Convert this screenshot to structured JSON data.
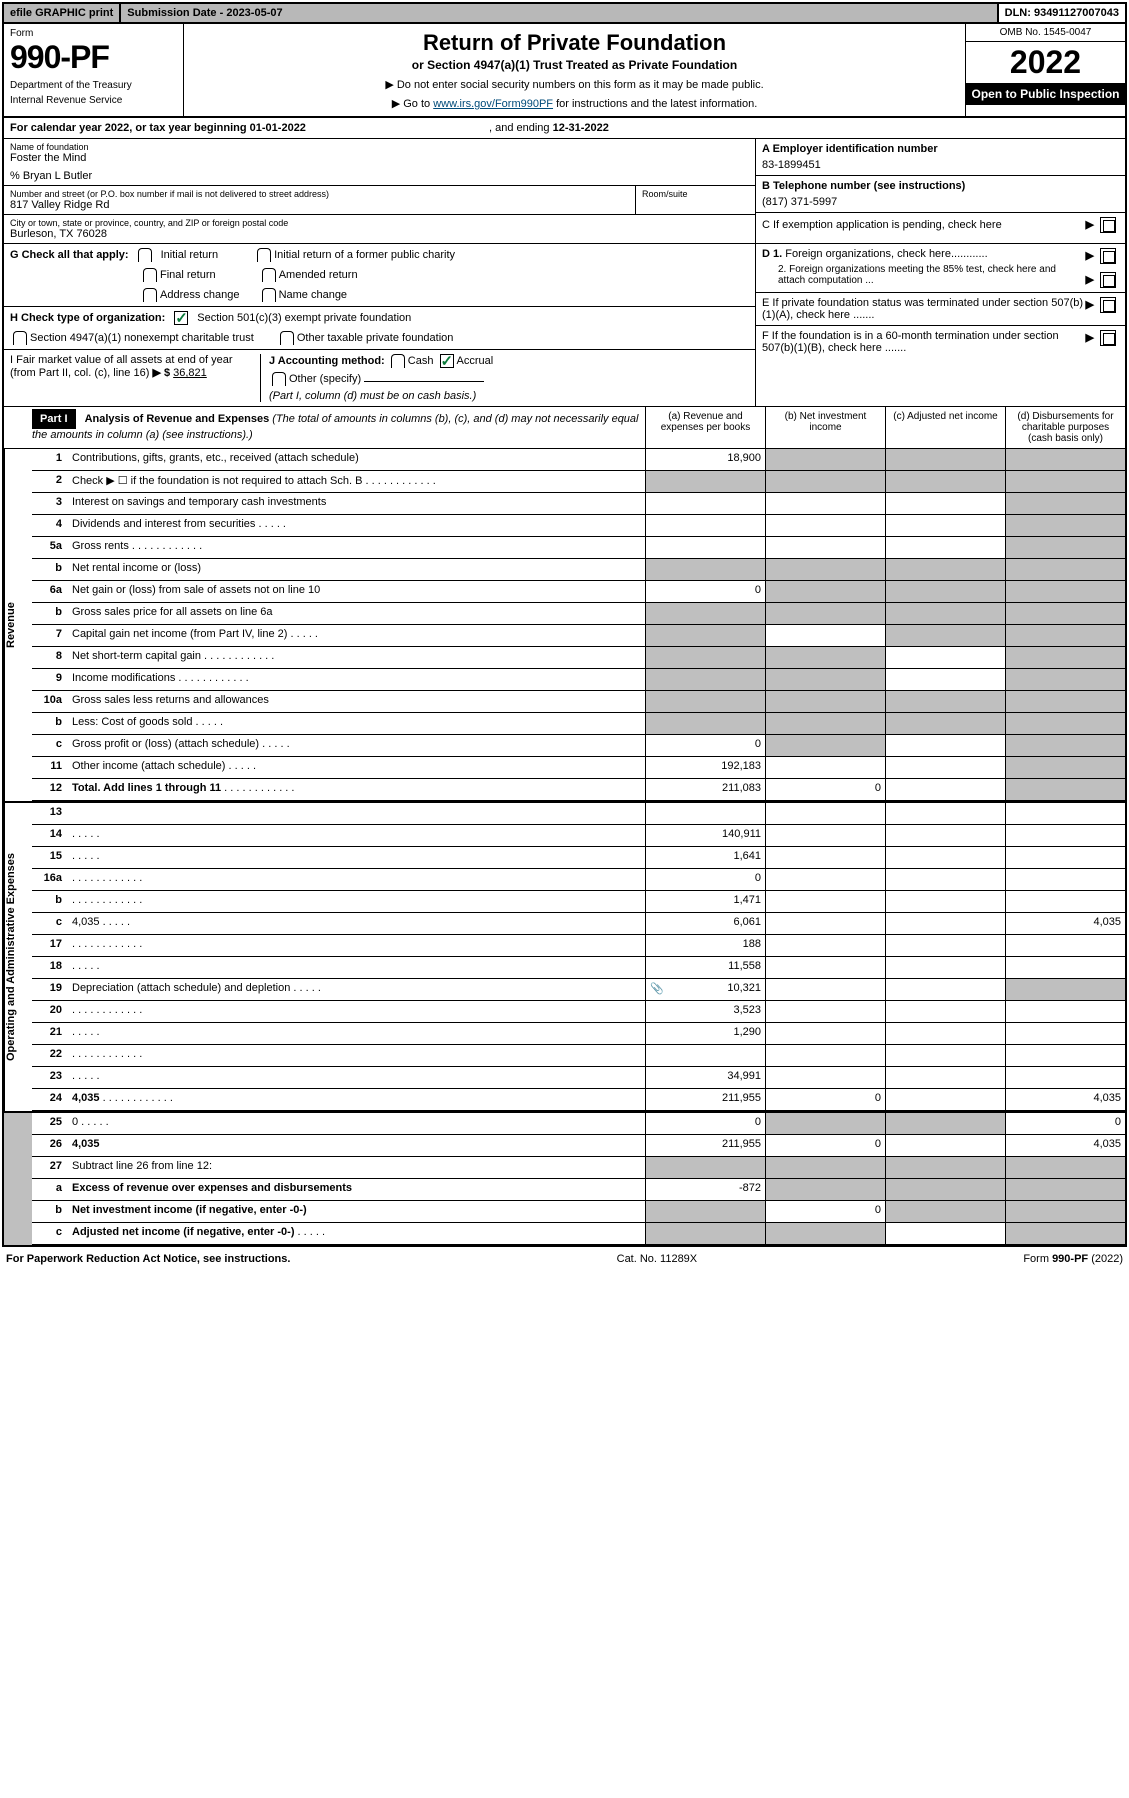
{
  "topbar": {
    "efile": "efile GRAPHIC print",
    "subdate_label": "Submission Date - ",
    "subdate": "2023-05-07",
    "dln_label": "DLN: ",
    "dln": "93491127007043"
  },
  "header": {
    "form_label": "Form",
    "form_num": "990-PF",
    "dept1": "Department of the Treasury",
    "dept2": "Internal Revenue Service",
    "title": "Return of Private Foundation",
    "subtitle": "or Section 4947(a)(1) Trust Treated as Private Foundation",
    "instr1": "▶ Do not enter social security numbers on this form as it may be made public.",
    "instr2_pre": "▶ Go to ",
    "instr2_link": "www.irs.gov/Form990PF",
    "instr2_post": " for instructions and the latest information.",
    "omb": "OMB No. 1545-0047",
    "year": "2022",
    "open": "Open to Public Inspection"
  },
  "calyear": {
    "pre": "For calendar year 2022, or tax year beginning ",
    "begin": "01-01-2022",
    "mid": " , and ending ",
    "end": "12-31-2022"
  },
  "info": {
    "name_label": "Name of foundation",
    "name": "Foster the Mind",
    "care_label": "% Bryan L Butler",
    "addr_label": "Number and street (or P.O. box number if mail is not delivered to street address)",
    "addr": "817 Valley Ridge Rd",
    "room_label": "Room/suite",
    "city_label": "City or town, state or province, country, and ZIP or foreign postal code",
    "city": "Burleson, TX  76028",
    "ein_label": "A Employer identification number",
    "ein": "83-1899451",
    "tel_label": "B Telephone number (see instructions)",
    "tel": "(817) 371-5997",
    "c_label": "C If exemption application is pending, check here",
    "d1_label": "D 1. Foreign organizations, check here............",
    "d2_label": "2. Foreign organizations meeting the 85% test, check here and attach computation ...",
    "e_label": "E  If private foundation status was terminated under section 507(b)(1)(A), check here .......",
    "f_label": "F  If the foundation is in a 60-month termination under section 507(b)(1)(B), check here .......",
    "g_label": "G Check all that apply:",
    "g_initial": "Initial return",
    "g_initial_former": "Initial return of a former public charity",
    "g_final": "Final return",
    "g_amended": "Amended return",
    "g_address": "Address change",
    "g_name": "Name change",
    "h_label": "H Check type of organization:",
    "h_501c3": "Section 501(c)(3) exempt private foundation",
    "h_4947": "Section 4947(a)(1) nonexempt charitable trust",
    "h_other": "Other taxable private foundation",
    "i_label": "I Fair market value of all assets at end of year (from Part II, col. (c), line 16)",
    "i_val": "36,821",
    "j_label": "J Accounting method:",
    "j_cash": "Cash",
    "j_accrual": "Accrual",
    "j_other": "Other (specify)",
    "j_note": "(Part I, column (d) must be on cash basis.)"
  },
  "part1": {
    "label": "Part I",
    "title": "Analysis of Revenue and Expenses",
    "title_note": " (The total of amounts in columns (b), (c), and (d) may not necessarily equal the amounts in column (a) (see instructions).)",
    "col_a": "(a) Revenue and expenses per books",
    "col_b": "(b) Net investment income",
    "col_c": "(c) Adjusted net income",
    "col_d": "(d) Disbursements for charitable purposes (cash basis only)"
  },
  "sides": {
    "revenue": "Revenue",
    "expenses": "Operating and Administrative Expenses"
  },
  "rows": [
    {
      "n": "1",
      "d": "Contributions, gifts, grants, etc., received (attach schedule)",
      "a": "18,900",
      "bg": true,
      "cg": true,
      "dg": true
    },
    {
      "n": "2",
      "d": "Check ▶ ☐ if the foundation is not required to attach Sch. B",
      "ag": true,
      "bg": true,
      "cg": true,
      "dg": true,
      "dots": true,
      "bold_not": true
    },
    {
      "n": "3",
      "d": "Interest on savings and temporary cash investments",
      "a": "",
      "b": "",
      "c": "",
      "dg": true
    },
    {
      "n": "4",
      "d": "Dividends and interest from securities",
      "a": "",
      "b": "",
      "c": "",
      "dg": true,
      "dots_s": true
    },
    {
      "n": "5a",
      "d": "Gross rents",
      "a": "",
      "b": "",
      "c": "",
      "dg": true,
      "dots": true
    },
    {
      "n": "b",
      "d": "Net rental income or (loss)",
      "ag": true,
      "bg": true,
      "cg": true,
      "dg": true
    },
    {
      "n": "6a",
      "d": "Net gain or (loss) from sale of assets not on line 10",
      "a": "0",
      "bg": true,
      "cg": true,
      "dg": true
    },
    {
      "n": "b",
      "d": "Gross sales price for all assets on line 6a",
      "ag": true,
      "bg": true,
      "cg": true,
      "dg": true
    },
    {
      "n": "7",
      "d": "Capital gain net income (from Part IV, line 2)",
      "ag": true,
      "b": "",
      "cg": true,
      "dg": true,
      "dots_s": true
    },
    {
      "n": "8",
      "d": "Net short-term capital gain",
      "ag": true,
      "bg": true,
      "c": "",
      "dg": true,
      "dots": true
    },
    {
      "n": "9",
      "d": "Income modifications",
      "ag": true,
      "bg": true,
      "c": "",
      "dg": true,
      "dots": true
    },
    {
      "n": "10a",
      "d": "Gross sales less returns and allowances",
      "ag": true,
      "bg": true,
      "cg": true,
      "dg": true
    },
    {
      "n": "b",
      "d": "Less: Cost of goods sold",
      "ag": true,
      "bg": true,
      "cg": true,
      "dg": true,
      "dots_s": true
    },
    {
      "n": "c",
      "d": "Gross profit or (loss) (attach schedule)",
      "a": "0",
      "bg": true,
      "c": "",
      "dg": true,
      "dots_s": true
    },
    {
      "n": "11",
      "d": "Other income (attach schedule)",
      "a": "192,183",
      "b": "",
      "c": "",
      "dg": true,
      "dots_s": true
    },
    {
      "n": "12",
      "d": "Total. Add lines 1 through 11",
      "a": "211,083",
      "b": "0",
      "c": "",
      "dg": true,
      "bold": true,
      "dots": true
    },
    {
      "n": "13",
      "d": "",
      "a": "",
      "b": "",
      "c": ""
    },
    {
      "n": "14",
      "d": "",
      "a": "140,911",
      "b": "",
      "c": "",
      "dots_s": true
    },
    {
      "n": "15",
      "d": "",
      "a": "1,641",
      "b": "",
      "c": "",
      "dots_s": true
    },
    {
      "n": "16a",
      "d": "",
      "a": "0",
      "b": "",
      "c": "",
      "dots": true
    },
    {
      "n": "b",
      "d": "",
      "a": "1,471",
      "b": "",
      "c": "",
      "dots": true
    },
    {
      "n": "c",
      "d": "4,035",
      "a": "6,061",
      "b": "",
      "c": "",
      "dots_s": true
    },
    {
      "n": "17",
      "d": "",
      "a": "188",
      "b": "",
      "c": "",
      "dots": true
    },
    {
      "n": "18",
      "d": "",
      "a": "11,558",
      "b": "",
      "c": "",
      "dots_s": true
    },
    {
      "n": "19",
      "d": "Depreciation (attach schedule) and depletion",
      "a": "10,321",
      "b": "",
      "c": "",
      "dg": true,
      "dots_s": true,
      "icon": true
    },
    {
      "n": "20",
      "d": "",
      "a": "3,523",
      "b": "",
      "c": "",
      "dots": true
    },
    {
      "n": "21",
      "d": "",
      "a": "1,290",
      "b": "",
      "c": "",
      "dots_s": true
    },
    {
      "n": "22",
      "d": "",
      "a": "",
      "b": "",
      "c": "",
      "dots": true
    },
    {
      "n": "23",
      "d": "",
      "a": "34,991",
      "b": "",
      "c": "",
      "dots_s": true
    },
    {
      "n": "24",
      "d": "4,035",
      "a": "211,955",
      "b": "0",
      "c": "",
      "bold": true,
      "dots": true
    },
    {
      "n": "25",
      "d": "0",
      "a": "0",
      "bg": true,
      "cg": true,
      "dots_s": true
    },
    {
      "n": "26",
      "d": "4,035",
      "a": "211,955",
      "b": "0",
      "c": "",
      "bold": true
    },
    {
      "n": "27",
      "d": "Subtract line 26 from line 12:",
      "ag": true,
      "bg": true,
      "cg": true,
      "dg": true
    },
    {
      "n": "a",
      "d": "Excess of revenue over expenses and disbursements",
      "a": "-872",
      "bg": true,
      "cg": true,
      "dg": true,
      "bold": true
    },
    {
      "n": "b",
      "d": "Net investment income (if negative, enter -0-)",
      "ag": true,
      "b": "0",
      "cg": true,
      "dg": true,
      "bold": true
    },
    {
      "n": "c",
      "d": "Adjusted net income (if negative, enter -0-)",
      "ag": true,
      "bg": true,
      "c": "",
      "dg": true,
      "bold": true,
      "dots_s": true
    }
  ],
  "footer": {
    "left": "For Paperwork Reduction Act Notice, see instructions.",
    "mid": "Cat. No. 11289X",
    "right": "Form 990-PF (2022)"
  }
}
